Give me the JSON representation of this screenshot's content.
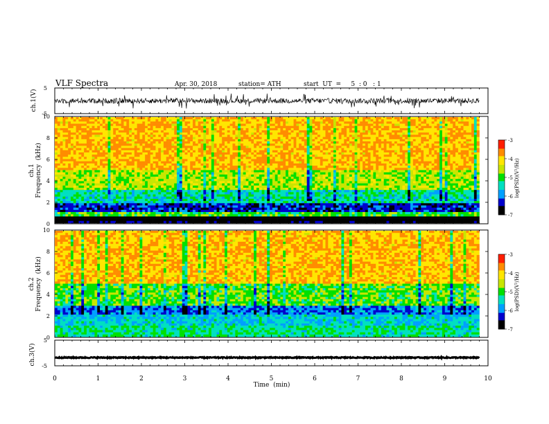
{
  "header": {
    "title": "VLF  Spectra",
    "date": "Apr. 30, 2018",
    "station": "station= ATH",
    "start": "start  UT  =     5  : 0   : 1"
  },
  "colors": {
    "waveform": "#000000",
    "frame": "#000000",
    "background": "#ffffff",
    "colormap": [
      "#000000",
      "#0000cc",
      "#00a0ff",
      "#00e0c0",
      "#00e000",
      "#c8e600",
      "#ffe600",
      "#ff8c00",
      "#ff1e00",
      "#ffffff"
    ]
  },
  "chart_data": [
    {
      "type": "line",
      "panel": "ch1-waveform",
      "ylabel": "ch.1(V)",
      "yticks": [
        "5",
        "-5"
      ],
      "ylim": [
        -5,
        5
      ],
      "xlim": [
        0,
        10
      ],
      "series": [
        {
          "values_description": "noisy waveform",
          "mean": 0.0,
          "amplitude_typical": 1.0,
          "spikes_max": 3.0,
          "extent_min": [
            0,
            9.8
          ]
        }
      ]
    },
    {
      "type": "heatmap",
      "panel": "ch1-spectrogram",
      "ylabel": "ch.1\nFrequency (kHz)",
      "ylabel_line1": "ch.1",
      "ylabel_line2": "Frequency  (kHz)",
      "yticks": [
        "0",
        "2",
        "4",
        "6",
        "8",
        "10"
      ],
      "ylim": [
        0,
        10
      ],
      "xlim": [
        0,
        10
      ],
      "data_extent_min": [
        0,
        9.8
      ],
      "colorbar": {
        "label": "log(PSD)(V²/Hz)",
        "ticks": [
          "-3",
          "-4",
          "-5",
          "-6",
          "-7"
        ],
        "range": [
          -7,
          -3
        ]
      },
      "bands_logpsd": [
        {
          "freq_khz": [
            0,
            0.3
          ],
          "level": -6.8
        },
        {
          "freq_khz": [
            0.3,
            0.6
          ],
          "level": -7.0
        },
        {
          "freq_khz": [
            0.6,
            1.0
          ],
          "level": -5.0
        },
        {
          "freq_khz": [
            1.0,
            1.8
          ],
          "level": -6.3
        },
        {
          "freq_khz": [
            1.8,
            3.2
          ],
          "level": -5.4
        },
        {
          "freq_khz": [
            3.2,
            5.0
          ],
          "level": -4.6
        },
        {
          "freq_khz": [
            5.0,
            10.0
          ],
          "level": -3.9
        }
      ]
    },
    {
      "type": "heatmap",
      "panel": "ch2-spectrogram",
      "ylabel_line1": "ch.2",
      "ylabel_line2": "Frequency  (kHz)",
      "yticks": [
        "0",
        "2",
        "4",
        "6",
        "8",
        "10"
      ],
      "ylim": [
        0,
        10
      ],
      "xlim": [
        0,
        10
      ],
      "data_extent_min": [
        0,
        9.8
      ],
      "colorbar": {
        "label": "log(PSD)(V²/Hz)",
        "ticks": [
          "-3",
          "-4",
          "-5",
          "-6",
          "-7"
        ],
        "range": [
          -7,
          -3
        ]
      },
      "bands_logpsd": [
        {
          "freq_khz": [
            0,
            1.0
          ],
          "level": -5.3
        },
        {
          "freq_khz": [
            1.0,
            2.0
          ],
          "level": -5.6
        },
        {
          "freq_khz": [
            2.0,
            3.0
          ],
          "level": -6.0
        },
        {
          "freq_khz": [
            3.0,
            5.0
          ],
          "level": -4.9
        },
        {
          "freq_khz": [
            5.0,
            10.0
          ],
          "level": -3.9
        }
      ]
    },
    {
      "type": "line",
      "panel": "ch3-waveform",
      "ylabel": "ch.3(V)",
      "yticks": [
        "5",
        "-5"
      ],
      "ylim": [
        -5,
        5
      ],
      "xlim": [
        0,
        10
      ],
      "xlabel": "Time  (min)",
      "xticks": [
        "0",
        "1",
        "2",
        "3",
        "4",
        "5",
        "6",
        "7",
        "8",
        "9",
        "10"
      ],
      "series": [
        {
          "values_description": "flat thick line",
          "mean": -1.8,
          "amplitude_typical": 0.2,
          "extent_min": [
            0,
            9.8
          ]
        }
      ]
    }
  ]
}
